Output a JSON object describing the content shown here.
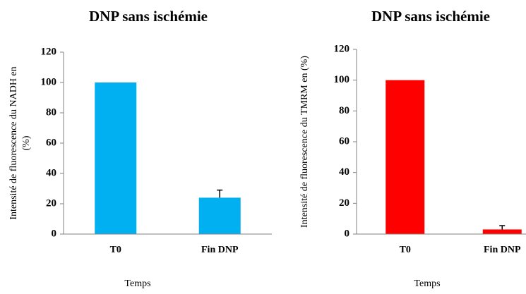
{
  "chart_data": [
    {
      "type": "bar",
      "title": "DNP sans ischémie",
      "ylabel": [
        "Intensité de fluorescence du NADH en",
        "(%)"
      ],
      "xlabel": "Temps",
      "categories": [
        "T0",
        "Fin DNP"
      ],
      "values": [
        100,
        24
      ],
      "errors": [
        null,
        5
      ],
      "color": "#00b0f0",
      "ylim": [
        0,
        120
      ],
      "yticks": [
        0,
        20,
        40,
        60,
        80,
        100,
        120
      ]
    },
    {
      "type": "bar",
      "title": "DNP sans ischémie",
      "ylabel": [
        "Intensité de fluorescence du TMRM en (%)"
      ],
      "xlabel": "Temps",
      "categories": [
        "T0",
        "Fin DNP"
      ],
      "values": [
        100,
        3
      ],
      "errors": [
        null,
        2.5
      ],
      "color": "#ff0000",
      "ylim": [
        0,
        120
      ],
      "yticks": [
        0,
        20,
        40,
        60,
        80,
        100,
        120
      ]
    }
  ]
}
